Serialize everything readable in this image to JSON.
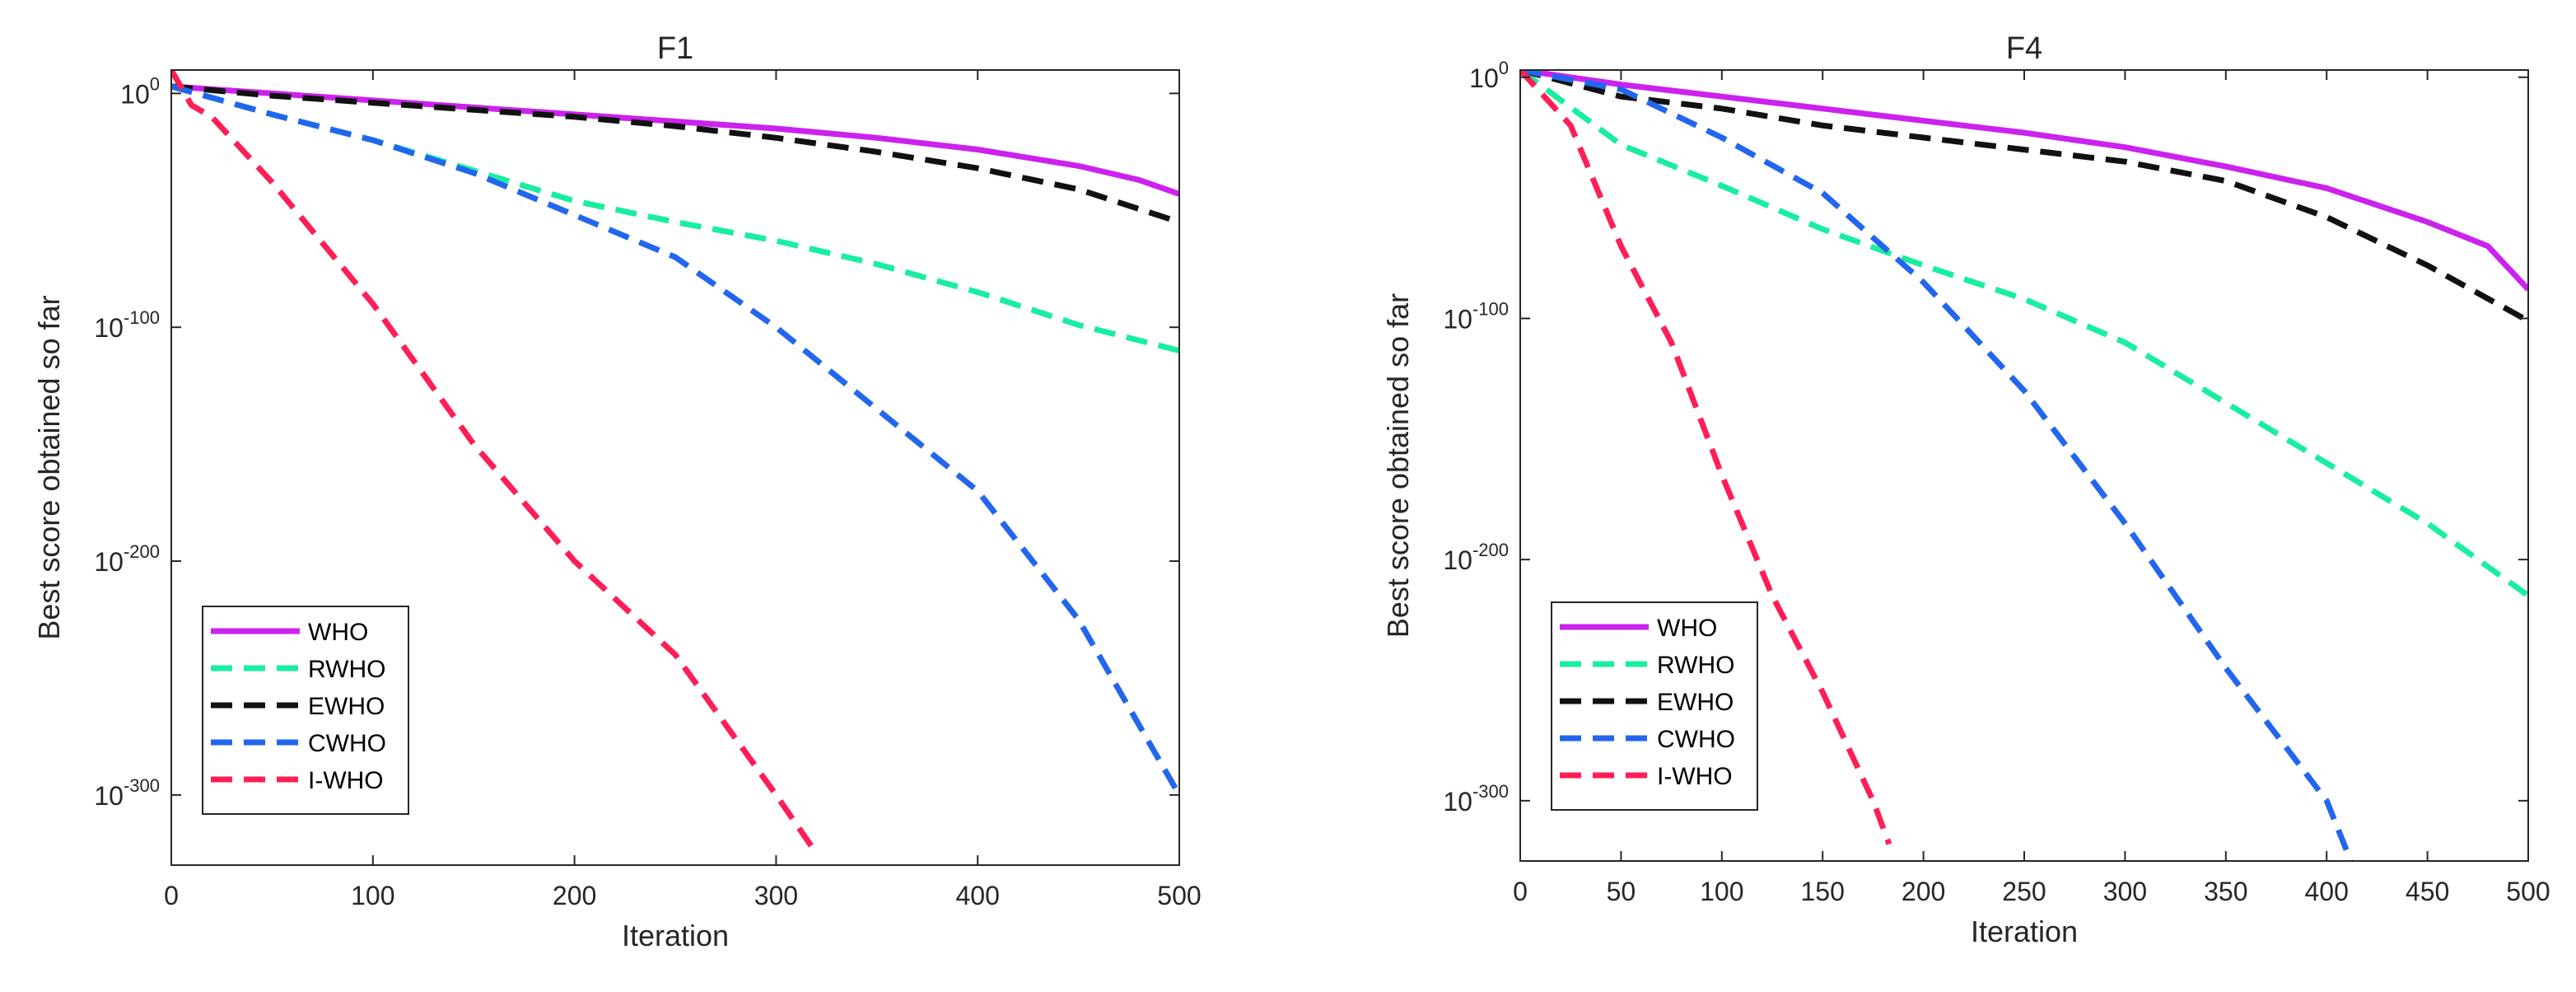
{
  "chart_data": [
    {
      "type": "line",
      "title": "F1",
      "xlabel": "Iteration",
      "ylabel": "Best score obtained so far",
      "xlim": [
        0,
        500
      ],
      "xticks": [
        0,
        100,
        200,
        300,
        400,
        500
      ],
      "yscale": "log",
      "ylim_log10": [
        -330,
        10
      ],
      "yticks": [
        {
          "exp": 0,
          "base": "10",
          "sup": "0"
        },
        {
          "exp": -100,
          "base": "10",
          "sup": "-100"
        },
        {
          "exp": -200,
          "base": "10",
          "sup": "-200"
        },
        {
          "exp": -300,
          "base": "10",
          "sup": "-300"
        }
      ],
      "legend": {
        "location": "bottom-left",
        "entries": [
          "WHO",
          "RWHO",
          "EWHO",
          "CWHO",
          "I-WHO"
        ]
      },
      "series": [
        {
          "name": "WHO",
          "color": "#cc22ee",
          "style": "solid",
          "x": [
            0,
            50,
            100,
            150,
            200,
            250,
            300,
            350,
            400,
            450,
            480,
            500
          ],
          "log10_y": [
            3,
            0,
            -3,
            -6,
            -9,
            -12,
            -15,
            -19,
            -24,
            -31,
            -37,
            -43
          ]
        },
        {
          "name": "RWHO",
          "color": "#19eea0",
          "style": "dashed",
          "x": [
            0,
            50,
            100,
            150,
            200,
            250,
            300,
            350,
            400,
            450,
            500
          ],
          "log10_y": [
            3,
            -9,
            -20,
            -33,
            -46,
            -55,
            -63,
            -73,
            -85,
            -99,
            -110
          ]
        },
        {
          "name": "EWHO",
          "color": "#111111",
          "style": "dashed",
          "x": [
            0,
            50,
            100,
            150,
            200,
            250,
            300,
            350,
            400,
            450,
            500
          ],
          "log10_y": [
            3,
            -1,
            -4,
            -7,
            -10,
            -14,
            -19,
            -25,
            -32,
            -41,
            -55
          ]
        },
        {
          "name": "CWHO",
          "color": "#2266ee",
          "style": "dashed",
          "x": [
            0,
            50,
            100,
            150,
            200,
            250,
            300,
            350,
            400,
            450,
            480,
            500
          ],
          "log10_y": [
            3,
            -9,
            -20,
            -34,
            -52,
            -70,
            -100,
            -135,
            -170,
            -225,
            -270,
            -300
          ]
        },
        {
          "name": "I-WHO",
          "color": "#ff1e55",
          "style": "dashed",
          "x": [
            0,
            10,
            20,
            50,
            100,
            150,
            200,
            250,
            300,
            320
          ],
          "log10_y": [
            10,
            -5,
            -10,
            -38,
            -90,
            -150,
            -200,
            -240,
            -300,
            -325
          ]
        }
      ]
    },
    {
      "type": "line",
      "title": "F4",
      "xlabel": "Iteration",
      "ylabel": "Best score obtained so far",
      "xlim": [
        0,
        500
      ],
      "xticks": [
        0,
        50,
        100,
        150,
        200,
        250,
        300,
        350,
        400,
        450,
        500
      ],
      "yscale": "log",
      "ylim_log10": [
        -325,
        3
      ],
      "yticks": [
        {
          "exp": 0,
          "base": "10",
          "sup": "0"
        },
        {
          "exp": -100,
          "base": "10",
          "sup": "-100"
        },
        {
          "exp": -200,
          "base": "10",
          "sup": "-200"
        },
        {
          "exp": -300,
          "base": "10",
          "sup": "-300"
        }
      ],
      "legend": {
        "location": "bottom-left",
        "entries": [
          "WHO",
          "RWHO",
          "EWHO",
          "CWHO",
          "I-WHO"
        ]
      },
      "series": [
        {
          "name": "WHO",
          "color": "#cc22ee",
          "style": "solid",
          "x": [
            0,
            50,
            100,
            150,
            200,
            250,
            300,
            350,
            400,
            450,
            480,
            500
          ],
          "log10_y": [
            3,
            -3,
            -8,
            -13,
            -18,
            -23,
            -29,
            -37,
            -46,
            -60,
            -70,
            -88
          ]
        },
        {
          "name": "RWHO",
          "color": "#19eea0",
          "style": "dashed",
          "x": [
            0,
            50,
            100,
            150,
            200,
            250,
            300,
            350,
            400,
            450,
            475,
            500
          ],
          "log10_y": [
            3,
            -28,
            -45,
            -63,
            -78,
            -92,
            -110,
            -135,
            -160,
            -185,
            -200,
            -215
          ]
        },
        {
          "name": "EWHO",
          "color": "#111111",
          "style": "dashed",
          "x": [
            0,
            50,
            100,
            150,
            200,
            250,
            300,
            350,
            400,
            450,
            500
          ],
          "log10_y": [
            3,
            -8,
            -13,
            -20,
            -25,
            -30,
            -35,
            -43,
            -58,
            -78,
            -101
          ]
        },
        {
          "name": "CWHO",
          "color": "#2266ee",
          "style": "dashed",
          "x": [
            0,
            50,
            100,
            150,
            200,
            250,
            300,
            350,
            400,
            412
          ],
          "log10_y": [
            3,
            -5,
            -25,
            -48,
            -85,
            -130,
            -185,
            -245,
            -300,
            -325
          ]
        },
        {
          "name": "I-WHO",
          "color": "#ff1e55",
          "style": "dashed",
          "x": [
            0,
            25,
            50,
            75,
            100,
            125,
            150,
            175,
            183
          ],
          "log10_y": [
            3,
            -20,
            -70,
            -110,
            -165,
            -215,
            -255,
            -300,
            -318
          ]
        }
      ]
    }
  ]
}
